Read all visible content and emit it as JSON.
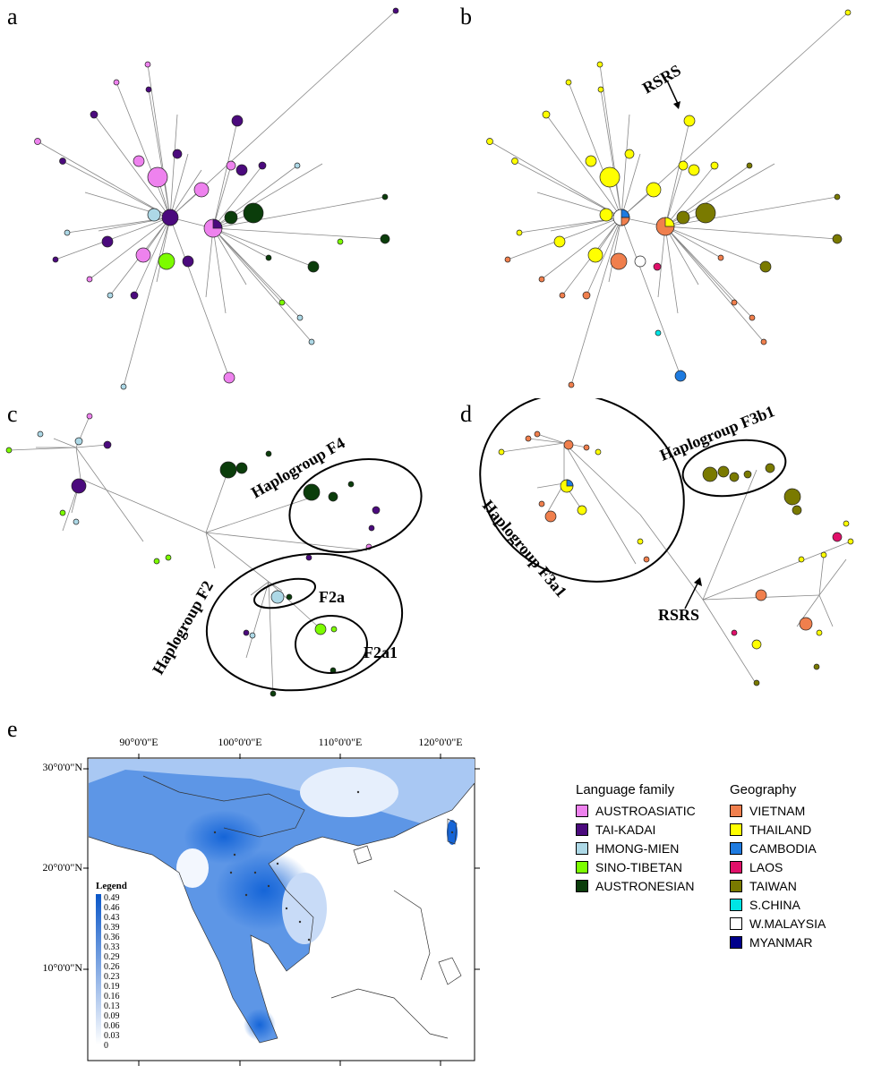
{
  "panels": {
    "a": "a",
    "b": "b",
    "c": "c",
    "d": "d",
    "e": "e"
  },
  "annotations": {
    "rsrs": "RSRS",
    "haplogroup_f4": "Haplogroup F4",
    "haplogroup_f2": "Haplogroup F2",
    "f2a": "F2a",
    "f2a1": "F2a1",
    "haplogroup_f3b1": "Haplogroup F3b1",
    "haplogroup_f3a1": "Haplogroup F3a1"
  },
  "map": {
    "lon_labels": [
      "90°0'0\"E",
      "100°0'0\"E",
      "110°0'0\"E",
      "120°0'0\"E"
    ],
    "lat_labels": [
      "30°0'0\"N",
      "20°0'0\"N",
      "10°0'0\"N"
    ],
    "legend_title": "Legend",
    "legend_values": [
      "0.49",
      "0.46",
      "0.43",
      "0.39",
      "0.36",
      "0.33",
      "0.29",
      "0.26",
      "0.23",
      "0.19",
      "0.16",
      "0.13",
      "0.09",
      "0.06",
      "0.03",
      "0"
    ]
  },
  "language_legend": {
    "title": "Language family",
    "items": [
      {
        "label": "AUSTROASIATIC",
        "color": "#ee82ee"
      },
      {
        "label": "TAI-KADAI",
        "color": "#4b0a7d"
      },
      {
        "label": "HMONG-MIEN",
        "color": "#add8e6"
      },
      {
        "label": "SINO-TIBETAN",
        "color": "#7cfc00"
      },
      {
        "label": "AUSTRONESIAN",
        "color": "#0b3d0b"
      }
    ]
  },
  "geography_legend": {
    "title": "Geography",
    "items": [
      {
        "label": "VIETNAM",
        "color": "#f07f4d"
      },
      {
        "label": "THAILAND",
        "color": "#ffff00"
      },
      {
        "label": "CAMBODIA",
        "color": "#1e7be0"
      },
      {
        "label": "LAOS",
        "color": "#e0106a"
      },
      {
        "label": "TAIWAN",
        "color": "#7a7a00"
      },
      {
        "label": "S.CHINA",
        "color": "#00e5e5"
      },
      {
        "label": "W.MALAYSIA",
        "color": "#ffffff"
      },
      {
        "label": "MYANMAR",
        "color": "#00008b"
      }
    ]
  }
}
